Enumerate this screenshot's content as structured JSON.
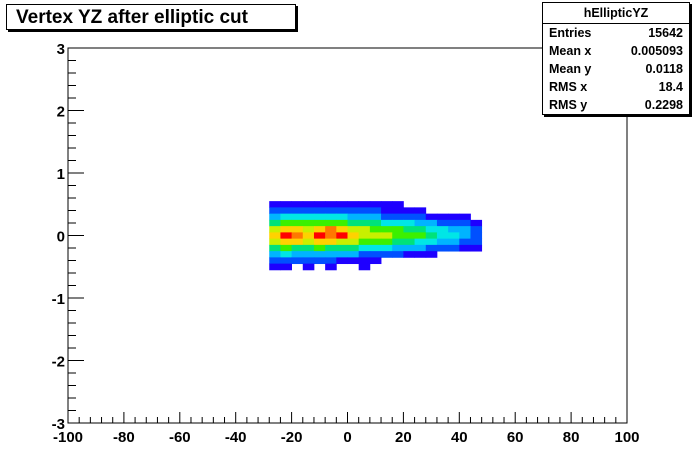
{
  "window": {
    "title": "Vertex YZ after elliptic cut"
  },
  "stats": {
    "name": "hEllipticYZ",
    "rows": [
      {
        "label": "Entries",
        "value": "15642"
      },
      {
        "label": "Mean x",
        "value": "0.005093"
      },
      {
        "label": "Mean y",
        "value": "0.0118"
      },
      {
        "label": "RMS x",
        "value": "18.4"
      },
      {
        "label": "RMS y",
        "value": "0.2298"
      }
    ]
  },
  "chart_data": {
    "type": "heatmap",
    "title": "Vertex YZ after elliptic cut",
    "xlabel": "",
    "ylabel": "",
    "xlim": [
      -100,
      100
    ],
    "ylim": [
      -3,
      3
    ],
    "x_ticks": [
      "-100",
      "-80",
      "-60",
      "-40",
      "-20",
      "0",
      "20",
      "40",
      "60",
      "80",
      "100"
    ],
    "y_ticks": [
      "-3",
      "-2",
      "-1",
      "0",
      "1",
      "2",
      "3"
    ],
    "grid": false,
    "colormap": [
      "#1e00ff",
      "#0050ff",
      "#00b4ff",
      "#00e6e6",
      "#00e27a",
      "#3cf000",
      "#c8f000",
      "#ffd200",
      "#ff7800",
      "#ff0000"
    ],
    "cell_size": {
      "x": 4,
      "y": 0.1
    },
    "cells": [
      {
        "x": -28,
        "y": 0.5,
        "level": 0
      },
      {
        "x": -24,
        "y": 0.5,
        "level": 0
      },
      {
        "x": -20,
        "y": 0.5,
        "level": 0
      },
      {
        "x": -16,
        "y": 0.5,
        "level": 0
      },
      {
        "x": -12,
        "y": 0.5,
        "level": 0
      },
      {
        "x": -8,
        "y": 0.5,
        "level": 0
      },
      {
        "x": -4,
        "y": 0.5,
        "level": 0
      },
      {
        "x": 0,
        "y": 0.5,
        "level": 0
      },
      {
        "x": 4,
        "y": 0.5,
        "level": 0
      },
      {
        "x": 8,
        "y": 0.5,
        "level": 0
      },
      {
        "x": 12,
        "y": 0.5,
        "level": 0
      },
      {
        "x": 16,
        "y": 0.5,
        "level": 0
      },
      {
        "x": -28,
        "y": 0.4,
        "level": 1
      },
      {
        "x": -24,
        "y": 0.4,
        "level": 1
      },
      {
        "x": -20,
        "y": 0.4,
        "level": 1
      },
      {
        "x": -16,
        "y": 0.4,
        "level": 1
      },
      {
        "x": -12,
        "y": 0.4,
        "level": 1
      },
      {
        "x": -8,
        "y": 0.4,
        "level": 1
      },
      {
        "x": -4,
        "y": 0.4,
        "level": 1
      },
      {
        "x": 0,
        "y": 0.4,
        "level": 1
      },
      {
        "x": 4,
        "y": 0.4,
        "level": 1
      },
      {
        "x": 8,
        "y": 0.4,
        "level": 1
      },
      {
        "x": 12,
        "y": 0.4,
        "level": 0
      },
      {
        "x": 16,
        "y": 0.4,
        "level": 0
      },
      {
        "x": 20,
        "y": 0.4,
        "level": 0
      },
      {
        "x": 24,
        "y": 0.4,
        "level": 0
      },
      {
        "x": -28,
        "y": 0.3,
        "level": 2
      },
      {
        "x": -24,
        "y": 0.3,
        "level": 3
      },
      {
        "x": -20,
        "y": 0.3,
        "level": 3
      },
      {
        "x": -16,
        "y": 0.3,
        "level": 3
      },
      {
        "x": -12,
        "y": 0.3,
        "level": 3
      },
      {
        "x": -8,
        "y": 0.3,
        "level": 3
      },
      {
        "x": -4,
        "y": 0.3,
        "level": 3
      },
      {
        "x": 0,
        "y": 0.3,
        "level": 2
      },
      {
        "x": 4,
        "y": 0.3,
        "level": 2
      },
      {
        "x": 8,
        "y": 0.3,
        "level": 2
      },
      {
        "x": 12,
        "y": 0.3,
        "level": 1
      },
      {
        "x": 16,
        "y": 0.3,
        "level": 1
      },
      {
        "x": 20,
        "y": 0.3,
        "level": 1
      },
      {
        "x": 24,
        "y": 0.3,
        "level": 1
      },
      {
        "x": 28,
        "y": 0.3,
        "level": 0
      },
      {
        "x": 32,
        "y": 0.3,
        "level": 0
      },
      {
        "x": 36,
        "y": 0.3,
        "level": 0
      },
      {
        "x": 40,
        "y": 0.3,
        "level": 0
      },
      {
        "x": -28,
        "y": 0.2,
        "level": 4
      },
      {
        "x": -24,
        "y": 0.2,
        "level": 5
      },
      {
        "x": -20,
        "y": 0.2,
        "level": 5
      },
      {
        "x": -16,
        "y": 0.2,
        "level": 5
      },
      {
        "x": -12,
        "y": 0.2,
        "level": 5
      },
      {
        "x": -8,
        "y": 0.2,
        "level": 5
      },
      {
        "x": -4,
        "y": 0.2,
        "level": 5
      },
      {
        "x": 0,
        "y": 0.2,
        "level": 4
      },
      {
        "x": 4,
        "y": 0.2,
        "level": 4
      },
      {
        "x": 8,
        "y": 0.2,
        "level": 4
      },
      {
        "x": 12,
        "y": 0.2,
        "level": 3
      },
      {
        "x": 16,
        "y": 0.2,
        "level": 3
      },
      {
        "x": 20,
        "y": 0.2,
        "level": 3
      },
      {
        "x": 24,
        "y": 0.2,
        "level": 2
      },
      {
        "x": 28,
        "y": 0.2,
        "level": 2
      },
      {
        "x": 32,
        "y": 0.2,
        "level": 1
      },
      {
        "x": 36,
        "y": 0.2,
        "level": 1
      },
      {
        "x": 40,
        "y": 0.2,
        "level": 1
      },
      {
        "x": 44,
        "y": 0.2,
        "level": 0
      },
      {
        "x": -28,
        "y": 0.1,
        "level": 6
      },
      {
        "x": -24,
        "y": 0.1,
        "level": 7
      },
      {
        "x": -20,
        "y": 0.1,
        "level": 7
      },
      {
        "x": -16,
        "y": 0.1,
        "level": 6
      },
      {
        "x": -12,
        "y": 0.1,
        "level": 7
      },
      {
        "x": -8,
        "y": 0.1,
        "level": 8
      },
      {
        "x": -4,
        "y": 0.1,
        "level": 7
      },
      {
        "x": 0,
        "y": 0.1,
        "level": 6
      },
      {
        "x": 4,
        "y": 0.1,
        "level": 6
      },
      {
        "x": 8,
        "y": 0.1,
        "level": 5
      },
      {
        "x": 12,
        "y": 0.1,
        "level": 5
      },
      {
        "x": 16,
        "y": 0.1,
        "level": 5
      },
      {
        "x": 20,
        "y": 0.1,
        "level": 4
      },
      {
        "x": 24,
        "y": 0.1,
        "level": 4
      },
      {
        "x": 28,
        "y": 0.1,
        "level": 3
      },
      {
        "x": 32,
        "y": 0.1,
        "level": 3
      },
      {
        "x": 36,
        "y": 0.1,
        "level": 2
      },
      {
        "x": 40,
        "y": 0.1,
        "level": 2
      },
      {
        "x": 44,
        "y": 0.1,
        "level": 1
      },
      {
        "x": -28,
        "y": 0.0,
        "level": 7
      },
      {
        "x": -24,
        "y": 0.0,
        "level": 9
      },
      {
        "x": -20,
        "y": 0.0,
        "level": 8
      },
      {
        "x": -16,
        "y": 0.0,
        "level": 7
      },
      {
        "x": -12,
        "y": 0.0,
        "level": 9
      },
      {
        "x": -8,
        "y": 0.0,
        "level": 8
      },
      {
        "x": -4,
        "y": 0.0,
        "level": 9
      },
      {
        "x": 0,
        "y": 0.0,
        "level": 7
      },
      {
        "x": 4,
        "y": 0.0,
        "level": 6
      },
      {
        "x": 8,
        "y": 0.0,
        "level": 6
      },
      {
        "x": 12,
        "y": 0.0,
        "level": 6
      },
      {
        "x": 16,
        "y": 0.0,
        "level": 5
      },
      {
        "x": 20,
        "y": 0.0,
        "level": 5
      },
      {
        "x": 24,
        "y": 0.0,
        "level": 5
      },
      {
        "x": 28,
        "y": 0.0,
        "level": 4
      },
      {
        "x": 32,
        "y": 0.0,
        "level": 3
      },
      {
        "x": 36,
        "y": 0.0,
        "level": 3
      },
      {
        "x": 40,
        "y": 0.0,
        "level": 2
      },
      {
        "x": 44,
        "y": 0.0,
        "level": 1
      },
      {
        "x": -28,
        "y": -0.1,
        "level": 6
      },
      {
        "x": -24,
        "y": -0.1,
        "level": 7
      },
      {
        "x": -20,
        "y": -0.1,
        "level": 7
      },
      {
        "x": -16,
        "y": -0.1,
        "level": 6
      },
      {
        "x": -12,
        "y": -0.1,
        "level": 7
      },
      {
        "x": -8,
        "y": -0.1,
        "level": 7
      },
      {
        "x": -4,
        "y": -0.1,
        "level": 6
      },
      {
        "x": 0,
        "y": -0.1,
        "level": 6
      },
      {
        "x": 4,
        "y": -0.1,
        "level": 5
      },
      {
        "x": 8,
        "y": -0.1,
        "level": 5
      },
      {
        "x": 12,
        "y": -0.1,
        "level": 5
      },
      {
        "x": 16,
        "y": -0.1,
        "level": 4
      },
      {
        "x": 20,
        "y": -0.1,
        "level": 4
      },
      {
        "x": 24,
        "y": -0.1,
        "level": 3
      },
      {
        "x": 28,
        "y": -0.1,
        "level": 3
      },
      {
        "x": 32,
        "y": -0.1,
        "level": 2
      },
      {
        "x": 36,
        "y": -0.1,
        "level": 2
      },
      {
        "x": 40,
        "y": -0.1,
        "level": 1
      },
      {
        "x": 44,
        "y": -0.1,
        "level": 1
      },
      {
        "x": -28,
        "y": -0.2,
        "level": 4
      },
      {
        "x": -24,
        "y": -0.2,
        "level": 5
      },
      {
        "x": -20,
        "y": -0.2,
        "level": 4
      },
      {
        "x": -16,
        "y": -0.2,
        "level": 4
      },
      {
        "x": -12,
        "y": -0.2,
        "level": 5
      },
      {
        "x": -8,
        "y": -0.2,
        "level": 4
      },
      {
        "x": -4,
        "y": -0.2,
        "level": 4
      },
      {
        "x": 0,
        "y": -0.2,
        "level": 4
      },
      {
        "x": 4,
        "y": -0.2,
        "level": 3
      },
      {
        "x": 8,
        "y": -0.2,
        "level": 3
      },
      {
        "x": 12,
        "y": -0.2,
        "level": 3
      },
      {
        "x": 16,
        "y": -0.2,
        "level": 2
      },
      {
        "x": 20,
        "y": -0.2,
        "level": 2
      },
      {
        "x": 24,
        "y": -0.2,
        "level": 2
      },
      {
        "x": 28,
        "y": -0.2,
        "level": 1
      },
      {
        "x": 32,
        "y": -0.2,
        "level": 1
      },
      {
        "x": 36,
        "y": -0.2,
        "level": 1
      },
      {
        "x": 40,
        "y": -0.2,
        "level": 0
      },
      {
        "x": 44,
        "y": -0.2,
        "level": 0
      },
      {
        "x": -28,
        "y": -0.3,
        "level": 2
      },
      {
        "x": -24,
        "y": -0.3,
        "level": 3
      },
      {
        "x": -20,
        "y": -0.3,
        "level": 2
      },
      {
        "x": -16,
        "y": -0.3,
        "level": 2
      },
      {
        "x": -12,
        "y": -0.3,
        "level": 2
      },
      {
        "x": -8,
        "y": -0.3,
        "level": 2
      },
      {
        "x": -4,
        "y": -0.3,
        "level": 2
      },
      {
        "x": 0,
        "y": -0.3,
        "level": 2
      },
      {
        "x": 4,
        "y": -0.3,
        "level": 1
      },
      {
        "x": 8,
        "y": -0.3,
        "level": 1
      },
      {
        "x": 12,
        "y": -0.3,
        "level": 1
      },
      {
        "x": 16,
        "y": -0.3,
        "level": 1
      },
      {
        "x": 20,
        "y": -0.3,
        "level": 0
      },
      {
        "x": 24,
        "y": -0.3,
        "level": 0
      },
      {
        "x": 28,
        "y": -0.3,
        "level": 0
      },
      {
        "x": -28,
        "y": -0.4,
        "level": 1
      },
      {
        "x": -24,
        "y": -0.4,
        "level": 1
      },
      {
        "x": -20,
        "y": -0.4,
        "level": 1
      },
      {
        "x": -16,
        "y": -0.4,
        "level": 1
      },
      {
        "x": -12,
        "y": -0.4,
        "level": 1
      },
      {
        "x": -8,
        "y": -0.4,
        "level": 1
      },
      {
        "x": -4,
        "y": -0.4,
        "level": 0
      },
      {
        "x": 0,
        "y": -0.4,
        "level": 0
      },
      {
        "x": 4,
        "y": -0.4,
        "level": 0
      },
      {
        "x": 8,
        "y": -0.4,
        "level": 0
      },
      {
        "x": -28,
        "y": -0.5,
        "level": 0
      },
      {
        "x": -24,
        "y": -0.5,
        "level": 0
      },
      {
        "x": -16,
        "y": -0.5,
        "level": 0
      },
      {
        "x": -8,
        "y": -0.5,
        "level": 0
      },
      {
        "x": 4,
        "y": -0.5,
        "level": 0
      }
    ]
  }
}
